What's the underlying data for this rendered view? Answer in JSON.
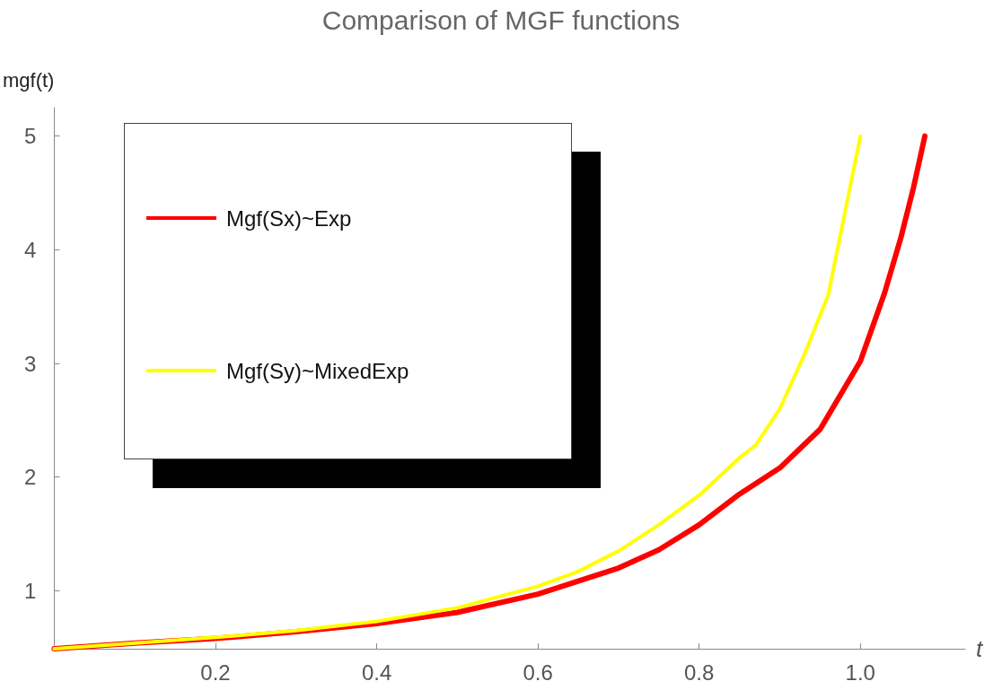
{
  "chart_data": {
    "type": "line",
    "title": "Comparison of MGF functions",
    "xlabel": "t",
    "ylabel": "mgf(t)",
    "xlim": [
      0,
      1.13
    ],
    "ylim": [
      0.49,
      5.25
    ],
    "xticks": [
      0.2,
      0.4,
      0.6,
      0.8,
      {
        "value": 1,
        "label": "1.0"
      }
    ],
    "yticks": [
      1,
      2,
      3,
      4,
      5
    ],
    "grid": false,
    "legend": "top left",
    "marker": "none",
    "line_style": "solid",
    "series": [
      {
        "name": "Mgf(Sx)~Exp",
        "color": "#ff0000",
        "x": [
          0,
          0.1,
          0.2,
          0.3,
          0.4,
          0.5,
          0.6,
          0.7,
          0.75,
          0.8,
          0.85,
          0.9,
          0.95,
          1.0,
          1.03,
          1.05,
          1.066,
          1.08
        ],
        "values": [
          0.49,
          0.54,
          0.58,
          0.64,
          0.71,
          0.81,
          0.97,
          1.2,
          1.36,
          1.58,
          1.85,
          2.08,
          2.42,
          3.02,
          3.62,
          4.1,
          4.55,
          5.0
        ]
      },
      {
        "name": "Mgf(Sy)~MixedExp",
        "color": "#ffff00",
        "x": [
          0,
          0.1,
          0.2,
          0.3,
          0.4,
          0.5,
          0.6,
          0.65,
          0.7,
          0.75,
          0.8,
          0.85,
          0.87,
          0.9,
          0.93,
          0.96,
          0.98,
          1.0
        ],
        "values": [
          0.49,
          0.54,
          0.59,
          0.65,
          0.73,
          0.85,
          1.04,
          1.17,
          1.35,
          1.58,
          1.84,
          2.17,
          2.28,
          2.6,
          3.07,
          3.6,
          4.3,
          5.0
        ]
      }
    ]
  }
}
